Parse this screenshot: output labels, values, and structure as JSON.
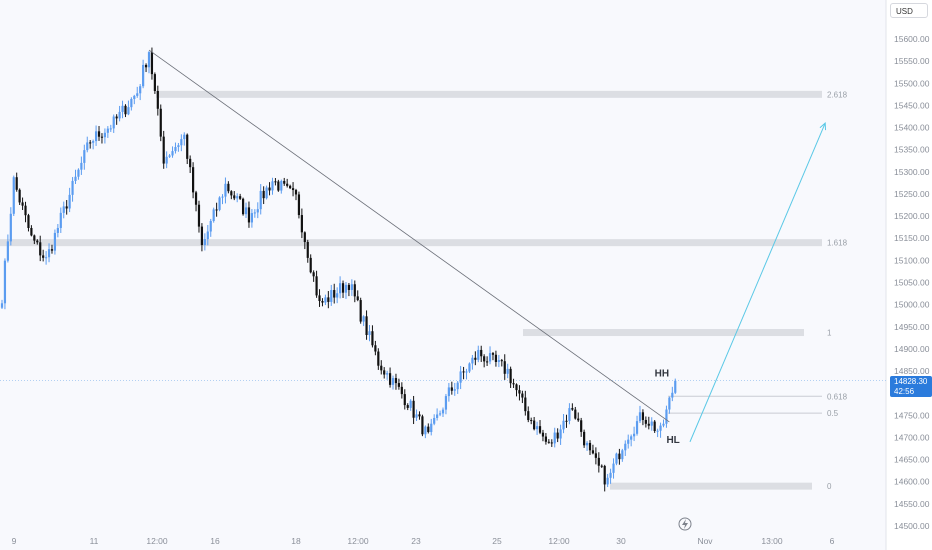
{
  "currency_button": "USD",
  "price_tag": {
    "price": "14828.30",
    "countdown": "42:56"
  },
  "colors": {
    "up": "#5b9cf0",
    "down": "#111111",
    "accent": "#2b7bdc",
    "projection": "#5ac8e6"
  },
  "icons": {
    "replay": "lightning-icon"
  },
  "chart_data": {
    "type": "candlestick",
    "title": "",
    "xlabel": "",
    "ylabel": "",
    "y_ticks": [
      "15600.00",
      "15550.00",
      "15500.00",
      "15450.00",
      "15400.00",
      "15350.00",
      "15300.00",
      "15250.00",
      "15200.00",
      "15150.00",
      "15100.00",
      "15050.00",
      "15000.00",
      "14950.00",
      "14900.00",
      "14850.00",
      "14800.00",
      "14750.00",
      "14700.00",
      "14650.00",
      "14600.00",
      "14550.00",
      "14500.00"
    ],
    "x_ticks": [
      "9",
      "11",
      "12:00",
      "16",
      "18",
      "12:00",
      "23",
      "25",
      "12:00",
      "30",
      "Nov",
      "13:00",
      "6"
    ],
    "ylim": [
      14495,
      15618
    ],
    "current_price": 14828.3,
    "grid": false,
    "anchors": [
      {
        "i": 0,
        "p": 15020
      },
      {
        "i": 4,
        "p": 15280
      },
      {
        "i": 10,
        "p": 15150
      },
      {
        "i": 15,
        "p": 15100
      },
      {
        "i": 22,
        "p": 15230
      },
      {
        "i": 30,
        "p": 15370
      },
      {
        "i": 38,
        "p": 15410
      },
      {
        "i": 46,
        "p": 15480
      },
      {
        "i": 50,
        "p": 15575
      },
      {
        "i": 55,
        "p": 15330
      },
      {
        "i": 62,
        "p": 15380
      },
      {
        "i": 68,
        "p": 15130
      },
      {
        "i": 76,
        "p": 15270
      },
      {
        "i": 84,
        "p": 15200
      },
      {
        "i": 92,
        "p": 15280
      },
      {
        "i": 100,
        "p": 15240
      },
      {
        "i": 108,
        "p": 15000
      },
      {
        "i": 118,
        "p": 15050
      },
      {
        "i": 128,
        "p": 14870
      },
      {
        "i": 138,
        "p": 14780
      },
      {
        "i": 145,
        "p": 14700
      },
      {
        "i": 152,
        "p": 14800
      },
      {
        "i": 162,
        "p": 14890
      },
      {
        "i": 172,
        "p": 14850
      },
      {
        "i": 178,
        "p": 14760
      },
      {
        "i": 186,
        "p": 14680
      },
      {
        "i": 194,
        "p": 14770
      },
      {
        "i": 200,
        "p": 14660
      },
      {
        "i": 206,
        "p": 14600
      },
      {
        "i": 212,
        "p": 14700
      },
      {
        "i": 218,
        "p": 14750
      },
      {
        "i": 224,
        "p": 14710
      },
      {
        "i": 229,
        "p": 14828
      }
    ],
    "levels": [
      {
        "label": "2.618",
        "price": 15475
      },
      {
        "label": "1.618",
        "price": 15140
      },
      {
        "label": "1",
        "price": 14937
      },
      {
        "label": "0.618",
        "price": 14793
      },
      {
        "label": "0.5",
        "price": 14755
      },
      {
        "label": "0",
        "price": 14590
      }
    ],
    "trendline": {
      "from": {
        "i": 50,
        "p": 15575
      },
      "to": {
        "i": 227,
        "p": 14735
      }
    },
    "projection": {
      "from": {
        "i": 234,
        "p": 14690
      },
      "to": {
        "i": 280,
        "p": 15410
      }
    },
    "annotations": [
      {
        "text": "HH",
        "i": 222,
        "p": 14838
      },
      {
        "text": "HL",
        "i": 226,
        "p": 14688
      }
    ]
  }
}
